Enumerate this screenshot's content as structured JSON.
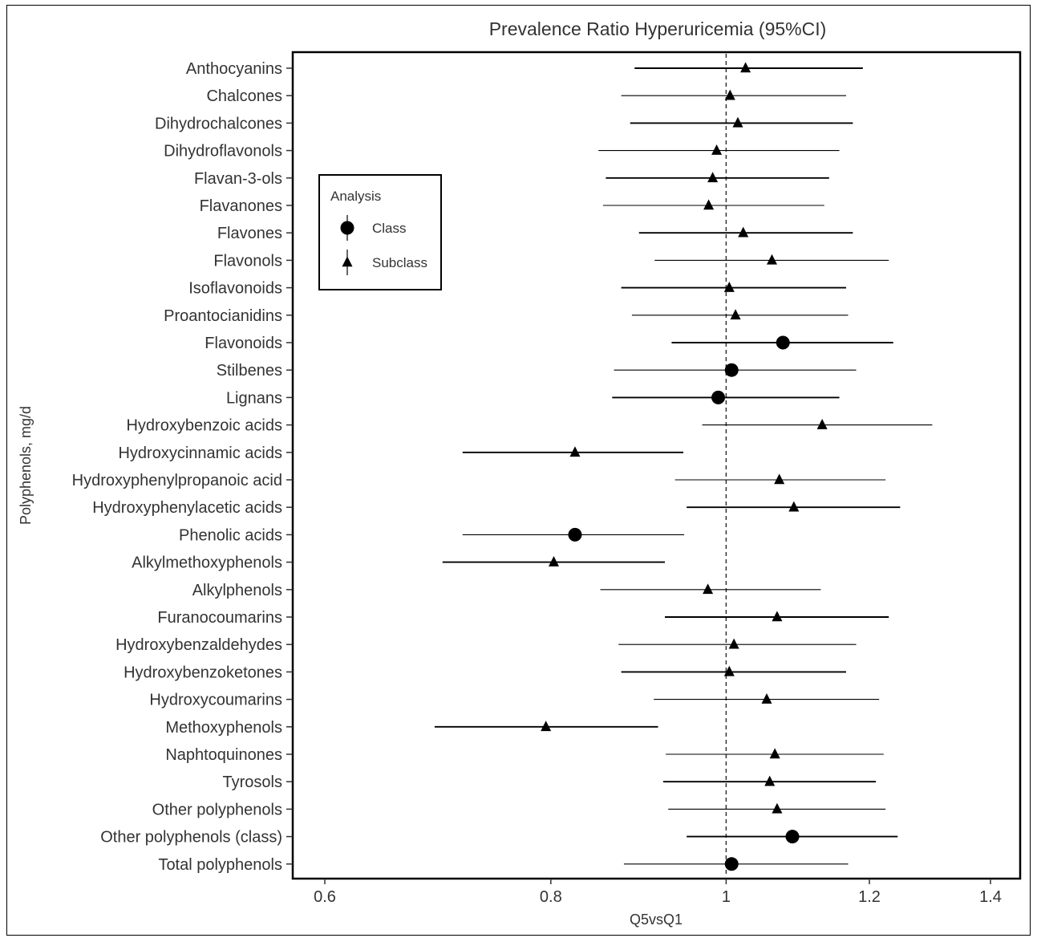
{
  "chart_data": {
    "type": "forest",
    "title": "Prevalence Ratio Hyperuricemia (95%CI)",
    "xlabel": "Q5vsQ1",
    "ylabel": "Polyphenols, mg/d",
    "x_scale": "log",
    "xlim": [
      0.6,
      1.4
    ],
    "x_ticks": [
      0.6,
      0.8,
      1,
      1.2,
      1.4
    ],
    "x_tick_labels": [
      "0.6",
      "0.8",
      "1",
      "1.2",
      "1.4"
    ],
    "reference_line": 1,
    "legend": {
      "title": "Analysis",
      "position": "top-left",
      "entries": [
        {
          "label": "Class",
          "shape": "circle"
        },
        {
          "label": "Subclass",
          "shape": "triangle"
        }
      ]
    },
    "rows": [
      {
        "label": "Anthocyanins",
        "analysis": "Subclass",
        "estimate": 1.025,
        "lower": 0.89,
        "upper": 1.19
      },
      {
        "label": "Chalcones",
        "analysis": "Subclass",
        "estimate": 1.005,
        "lower": 0.875,
        "upper": 1.165
      },
      {
        "label": "Dihydrochalcones",
        "analysis": "Subclass",
        "estimate": 1.015,
        "lower": 0.885,
        "upper": 1.175
      },
      {
        "label": "Dihydroflavonols",
        "analysis": "Subclass",
        "estimate": 0.988,
        "lower": 0.85,
        "upper": 1.155
      },
      {
        "label": "Flavan-3-ols",
        "analysis": "Subclass",
        "estimate": 0.983,
        "lower": 0.858,
        "upper": 1.14
      },
      {
        "label": "Flavanones",
        "analysis": "Subclass",
        "estimate": 0.978,
        "lower": 0.855,
        "upper": 1.133
      },
      {
        "label": "Flavones",
        "analysis": "Subclass",
        "estimate": 1.022,
        "lower": 0.895,
        "upper": 1.175
      },
      {
        "label": "Flavonols",
        "analysis": "Subclass",
        "estimate": 1.06,
        "lower": 0.913,
        "upper": 1.23
      },
      {
        "label": "Isoflavonoids",
        "analysis": "Subclass",
        "estimate": 1.004,
        "lower": 0.875,
        "upper": 1.165
      },
      {
        "label": "Proantocianidins",
        "analysis": "Subclass",
        "estimate": 1.012,
        "lower": 0.887,
        "upper": 1.168
      },
      {
        "label": "Flavonoids",
        "analysis": "Class",
        "estimate": 1.075,
        "lower": 0.933,
        "upper": 1.237
      },
      {
        "label": "Stilbenes",
        "analysis": "Class",
        "estimate": 1.007,
        "lower": 0.867,
        "upper": 1.18
      },
      {
        "label": "Lignans",
        "analysis": "Class",
        "estimate": 0.99,
        "lower": 0.865,
        "upper": 1.155
      },
      {
        "label": "Hydroxybenzoic acids",
        "analysis": "Subclass",
        "estimate": 1.13,
        "lower": 0.97,
        "upper": 1.3
      },
      {
        "label": "Hydroxycinnamic acids",
        "analysis": "Subclass",
        "estimate": 0.825,
        "lower": 0.715,
        "upper": 0.947
      },
      {
        "label": "Hydroxyphenylpropanoic acid",
        "analysis": "Subclass",
        "estimate": 1.07,
        "lower": 0.937,
        "upper": 1.225
      },
      {
        "label": "Hydroxyphenylacetic acids",
        "analysis": "Subclass",
        "estimate": 1.09,
        "lower": 0.951,
        "upper": 1.248
      },
      {
        "label": "Phenolic acids",
        "analysis": "Class",
        "estimate": 0.825,
        "lower": 0.715,
        "upper": 0.948
      },
      {
        "label": "Alkylmethoxyphenols",
        "analysis": "Subclass",
        "estimate": 0.803,
        "lower": 0.697,
        "upper": 0.925
      },
      {
        "label": "Alkylphenols",
        "analysis": "Subclass",
        "estimate": 0.977,
        "lower": 0.852,
        "upper": 1.128
      },
      {
        "label": "Furanocoumarins",
        "analysis": "Subclass",
        "estimate": 1.067,
        "lower": 0.925,
        "upper": 1.23
      },
      {
        "label": "Hydroxybenzaldehydes",
        "analysis": "Subclass",
        "estimate": 1.01,
        "lower": 0.872,
        "upper": 1.18
      },
      {
        "label": "Hydroxybenzoketones",
        "analysis": "Subclass",
        "estimate": 1.004,
        "lower": 0.875,
        "upper": 1.165
      },
      {
        "label": "Hydroxycoumarins",
        "analysis": "Subclass",
        "estimate": 1.053,
        "lower": 0.912,
        "upper": 1.215
      },
      {
        "label": "Methoxyphenols",
        "analysis": "Subclass",
        "estimate": 0.795,
        "lower": 0.69,
        "upper": 0.917
      },
      {
        "label": "Naphtoquinones",
        "analysis": "Subclass",
        "estimate": 1.064,
        "lower": 0.926,
        "upper": 1.222
      },
      {
        "label": "Tyrosols",
        "analysis": "Subclass",
        "estimate": 1.057,
        "lower": 0.923,
        "upper": 1.21
      },
      {
        "label": "Other polyphenols",
        "analysis": "Subclass",
        "estimate": 1.067,
        "lower": 0.929,
        "upper": 1.225
      },
      {
        "label": "Other polyphenols (class)",
        "analysis": "Class",
        "estimate": 1.088,
        "lower": 0.951,
        "upper": 1.244
      },
      {
        "label": "Total polyphenols",
        "analysis": "Class",
        "estimate": 1.007,
        "lower": 0.878,
        "upper": 1.168
      }
    ]
  }
}
